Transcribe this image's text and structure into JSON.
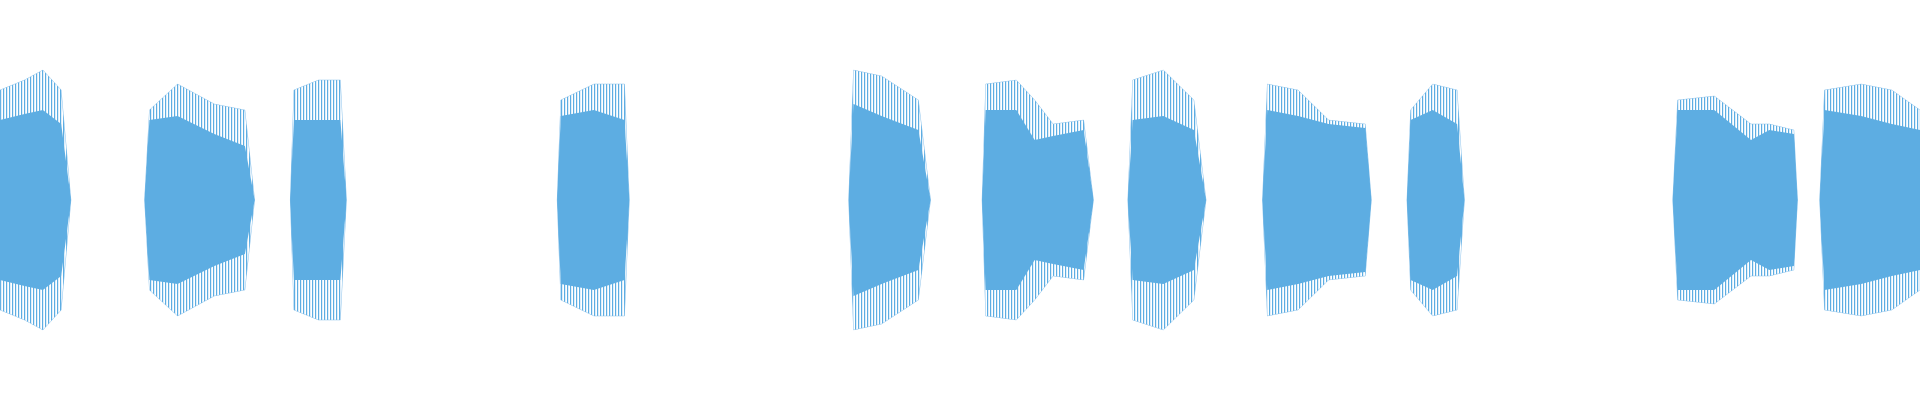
{
  "chart_data": {
    "type": "waveform",
    "color": "#5dade2",
    "peak_color": "#8cc3ec",
    "xlim": [
      0,
      1568
    ],
    "ylim": [
      -1,
      1
    ],
    "segments": [
      {
        "x": [
          0,
          20,
          35,
          50,
          58
        ],
        "peak": [
          0.55,
          0.6,
          0.65,
          0.55,
          0
        ],
        "body": [
          0.4,
          0.43,
          0.45,
          0.38,
          0
        ]
      },
      {
        "x": [
          118,
          122,
          145,
          175,
          200,
          208
        ],
        "peak": [
          0,
          0.45,
          0.58,
          0.48,
          0.45,
          0
        ],
        "body": [
          0,
          0.4,
          0.42,
          0.33,
          0.27,
          0
        ]
      },
      {
        "x": [
          237,
          240,
          260,
          278,
          283
        ],
        "peak": [
          0,
          0.55,
          0.6,
          0.6,
          0
        ],
        "body": [
          0,
          0.4,
          0.4,
          0.4,
          0
        ]
      },
      {
        "x": [
          455,
          458,
          485,
          510,
          514
        ],
        "peak": [
          0,
          0.5,
          0.58,
          0.58,
          0
        ],
        "body": [
          0,
          0.42,
          0.45,
          0.4,
          0
        ]
      },
      {
        "x": [
          693,
          697,
          720,
          750,
          760
        ],
        "peak": [
          0,
          0.65,
          0.62,
          0.5,
          0
        ],
        "body": [
          0,
          0.48,
          0.42,
          0.35,
          0
        ]
      },
      {
        "x": [
          802,
          805,
          830,
          845,
          860,
          885,
          893
        ],
        "peak": [
          0,
          0.58,
          0.6,
          0.5,
          0.38,
          0.4,
          0
        ],
        "body": [
          0,
          0.45,
          0.45,
          0.3,
          0.32,
          0.35,
          0
        ]
      },
      {
        "x": [
          921,
          925,
          950,
          975,
          985
        ],
        "peak": [
          0,
          0.6,
          0.65,
          0.5,
          0
        ],
        "body": [
          0,
          0.4,
          0.42,
          0.35,
          0
        ]
      },
      {
        "x": [
          1031,
          1035,
          1060,
          1085,
          1115,
          1120
        ],
        "peak": [
          0,
          0.58,
          0.55,
          0.4,
          0.38,
          0
        ],
        "body": [
          0,
          0.45,
          0.42,
          0.38,
          0.36,
          0
        ]
      },
      {
        "x": [
          1149,
          1152,
          1170,
          1190,
          1196
        ],
        "peak": [
          0,
          0.45,
          0.58,
          0.55,
          0
        ],
        "body": [
          0,
          0.4,
          0.45,
          0.38,
          0
        ]
      },
      {
        "x": [
          1366,
          1370,
          1400,
          1430,
          1445,
          1465,
          1468
        ],
        "peak": [
          0,
          0.5,
          0.52,
          0.38,
          0.38,
          0.35,
          0
        ],
        "body": [
          0,
          0.45,
          0.45,
          0.3,
          0.35,
          0.33,
          0
        ]
      },
      {
        "x": [
          1486,
          1490,
          1520,
          1545,
          1568
        ],
        "peak": [
          0,
          0.55,
          0.58,
          0.55,
          0.45
        ],
        "body": [
          0,
          0.45,
          0.42,
          0.38,
          0.35
        ]
      }
    ]
  }
}
